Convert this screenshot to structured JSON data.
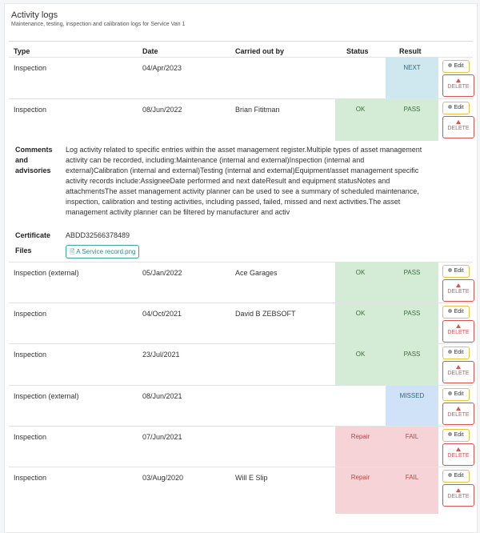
{
  "panel": {
    "title": "Activity logs",
    "subtitle": "Maintenance, testing, inspection and calibration logs for Service Van 1"
  },
  "columns": {
    "type": "Type",
    "date": "Date",
    "carried_out_by": "Carried out by",
    "status": "Status",
    "result": "Result"
  },
  "buttons": {
    "edit": "Edit",
    "delete": "DELETE"
  },
  "rows": [
    {
      "type": "Inspection",
      "date": "04/Apr/2023",
      "by": "",
      "status": "",
      "result": "NEXT",
      "result_color": "#cfe8ef"
    },
    {
      "type": "Inspection",
      "date": "08/Jun/2022",
      "by": "Brian Fititman",
      "status": "OK",
      "result": "PASS",
      "status_color": "#d4ecd5",
      "result_color": "#d4ecd5"
    },
    {
      "type": "Inspection (external)",
      "date": "05/Jan/2022",
      "by": "Ace Garages",
      "status": "OK",
      "result": "PASS",
      "status_color": "#d4ecd5",
      "result_color": "#d4ecd5"
    },
    {
      "type": "Inspection",
      "date": "04/Oct/2021",
      "by": "David B ZEBSOFT",
      "status": "OK",
      "result": "PASS",
      "status_color": "#d4ecd5",
      "result_color": "#d4ecd5"
    },
    {
      "type": "Inspection",
      "date": "23/Jul/2021",
      "by": "",
      "status": "OK",
      "result": "PASS",
      "status_color": "#d4ecd5",
      "result_color": "#d4ecd5"
    },
    {
      "type": "Inspection (external)",
      "date": "08/Jun/2021",
      "by": "",
      "status": "",
      "result": "MISSED",
      "result_color": "#cfe2f7"
    },
    {
      "type": "Inspection",
      "date": "07/Jun/2021",
      "by": "",
      "status": "Repair",
      "result": "FAIL",
      "status_color": "#f6d3d6",
      "result_color": "#f6d3d6"
    },
    {
      "type": "Inspection",
      "date": "03/Aug/2020",
      "by": "Will E Slip",
      "status": "Repair",
      "result": "FAIL",
      "status_color": "#f6d3d6",
      "result_color": "#f6d3d6"
    }
  ],
  "detail": {
    "comments_label": "Comments and advisories",
    "comments": "Log activity related to specific entries within the asset management register.Multiple types of asset management activity can be recorded, including:Maintenance (internal and external)Inspection (internal and external)Calibration (internal and external)Testing (internal and external)Equipment/asset management specific activity records include:AssigneeDate performed and next dateResult and equipment statusNotes and attachmentsThe asset management activity planner can be used to see a summary of scheduled maintenance, inspection, calibration and testing activities, including passed, failed, missed and next activities.The asset management activity planner can be filtered by manufacturer and activ",
    "certificate_label": "Certificate",
    "certificate": "ABDD32566378489",
    "files_label": "Files",
    "file_name": "A Service record.png"
  },
  "colors": {
    "ok_fill": "#d4ecd5",
    "fail_fill": "#f6d3d6",
    "next_fill": "#cfe8ef",
    "missed_fill": "#cfe2f7",
    "edit_border": "#e8c23a",
    "delete_border": "#d9534f",
    "file_chip": "#3aa6a3"
  }
}
